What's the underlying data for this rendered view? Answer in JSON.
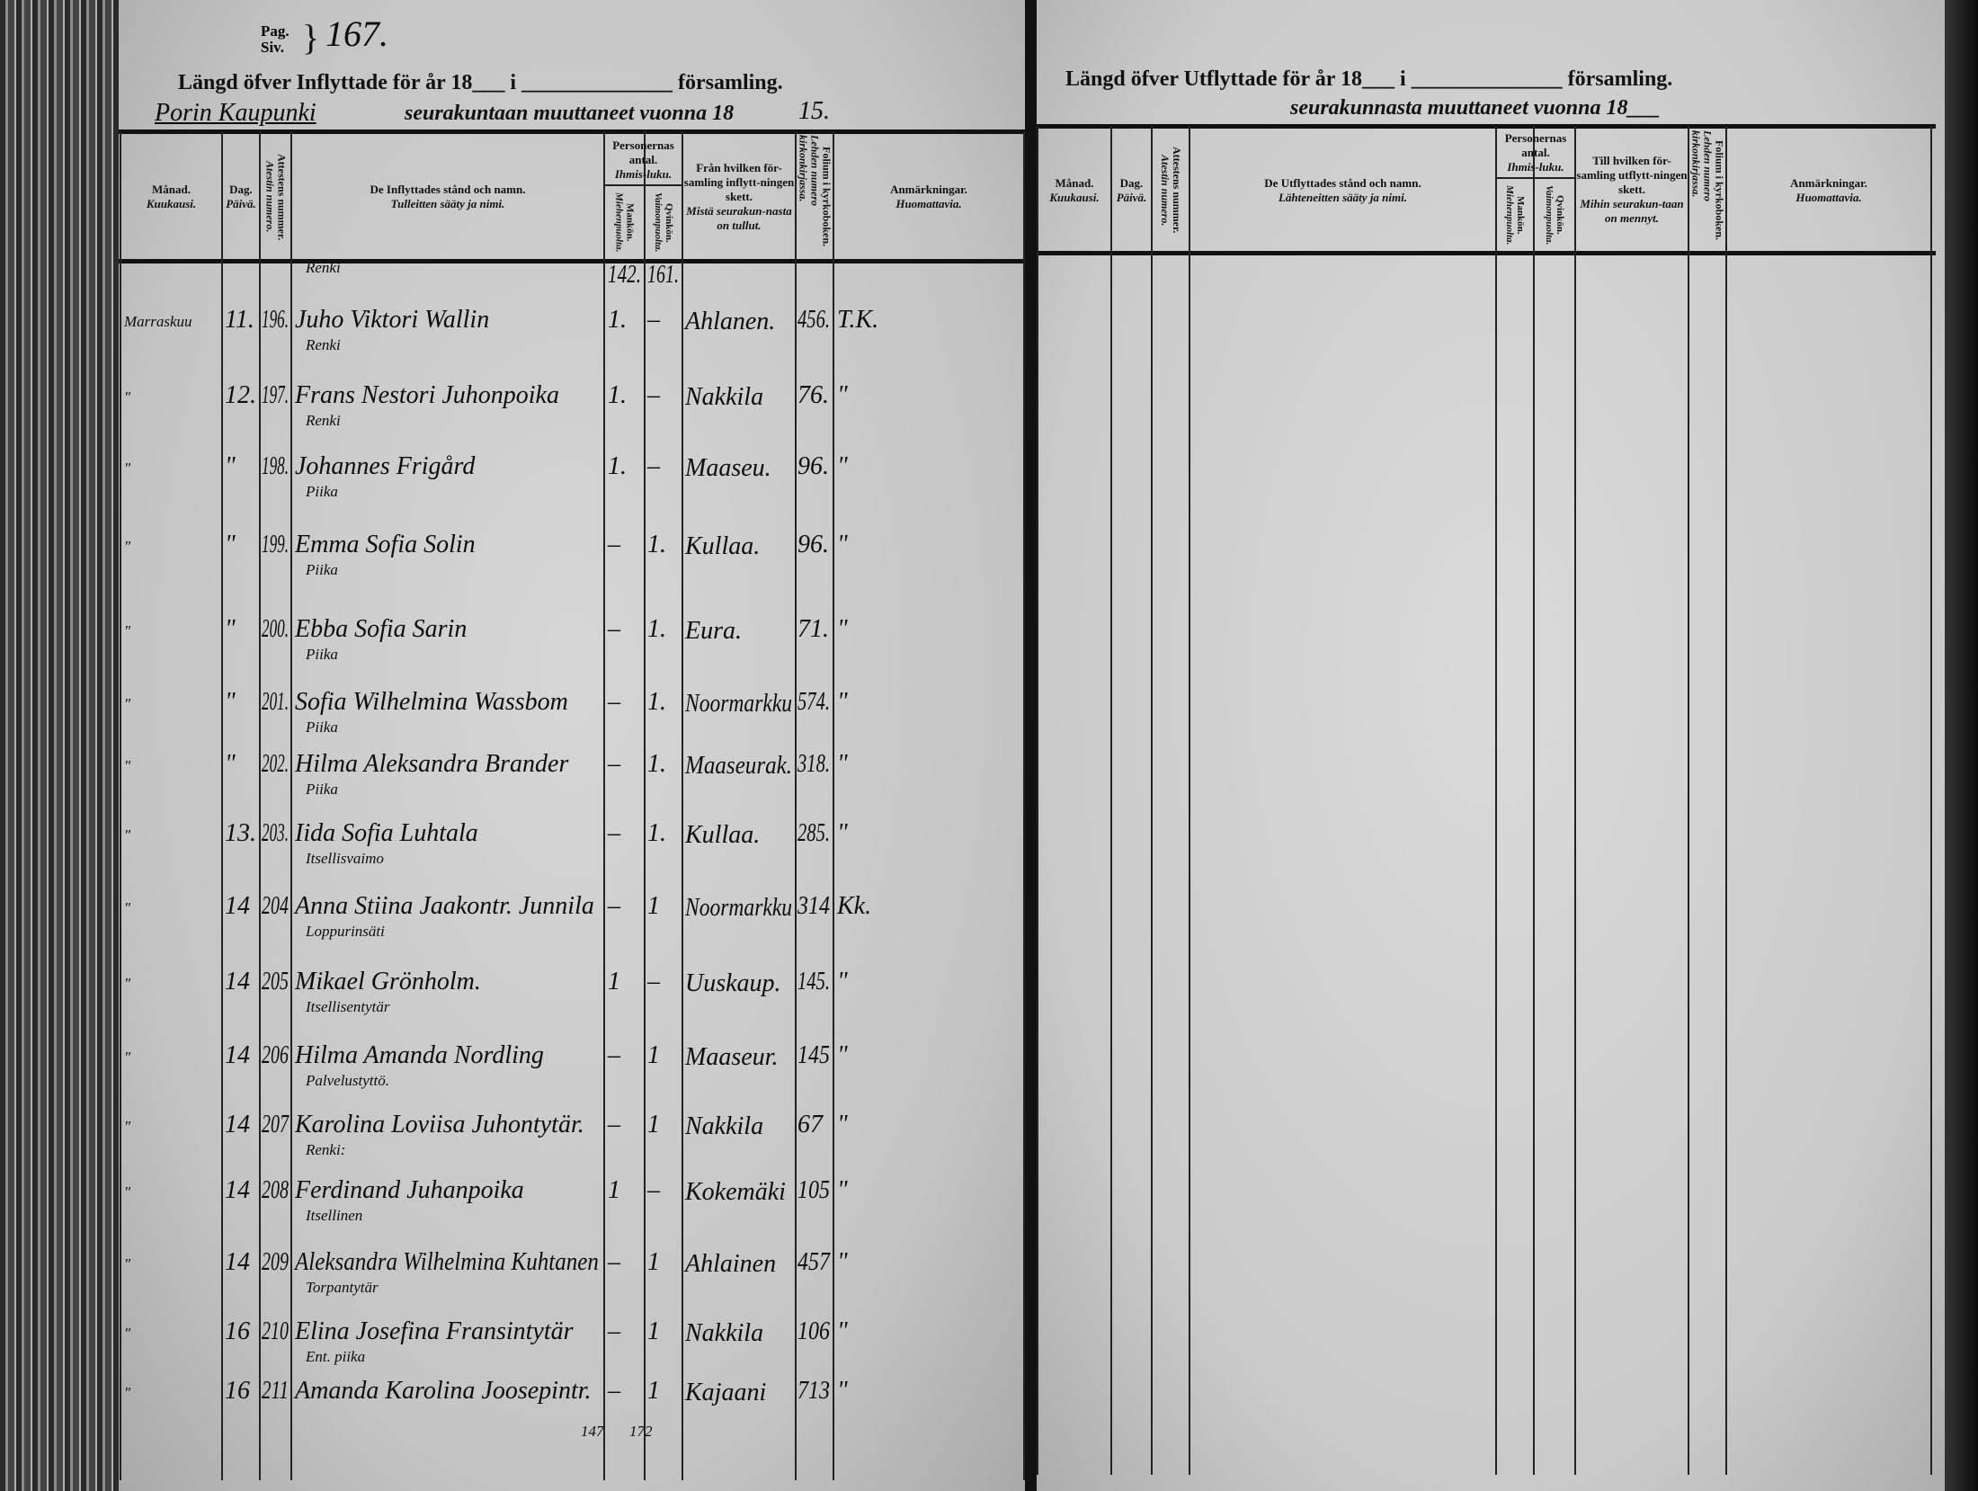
{
  "left_page": {
    "page_label": [
      "Pag.",
      "Siv."
    ],
    "page_number": "167.",
    "title": "Längd öfver Inflyttade för år 18___ i ______________ församling.",
    "subtitle_handwritten": "Porin Kaupunki",
    "subtitle": "seurakuntaan muuttaneet vuonna 18",
    "subtitle_year": "15.",
    "headers": {
      "month": [
        "Månad.",
        "Kuukausi."
      ],
      "day": [
        "Dag.",
        "Päivä."
      ],
      "attest": [
        "Attestens nummer.",
        "Atestin numero."
      ],
      "name": [
        "De Inflyttades stånd och namn.",
        "Tulleitten sääty ja nimi."
      ],
      "persons": [
        "Personernas antal.",
        "Ihmis-luku."
      ],
      "men": [
        "Mankön.",
        "Miehenpuolta."
      ],
      "women": [
        "Qvinkön.",
        "Vaimonpuolta."
      ],
      "from": [
        "Från hvilken för-samling inflytt-ningen skett.",
        "Mistä seurakun-nasta on tullut."
      ],
      "folio": [
        "Folium i kyrkoboken.",
        "Lehden numero kirkonkirjassa."
      ],
      "remarks": [
        "Anmärkningar.",
        "Huomattavia."
      ]
    },
    "rows": [
      {
        "month": "",
        "day": "",
        "number": "",
        "name": "",
        "occupation": "Renki",
        "men": "142.",
        "women": "161.",
        "from": "",
        "folio": "",
        "remark": ""
      },
      {
        "month": "Marraskuu",
        "day": "11.",
        "number": "196.",
        "name": "Juho Viktori Wallin",
        "occupation": "Renki",
        "men": "1.",
        "women": "–",
        "from": "Ahlanen.",
        "folio": "456.",
        "remark": "T.K."
      },
      {
        "month": "\"",
        "day": "12.",
        "number": "197.",
        "name": "Frans Nestori Juhonpoika",
        "occupation": "Renki",
        "men": "1.",
        "women": "–",
        "from": "Nakkila",
        "folio": "76.",
        "remark": "\""
      },
      {
        "month": "\"",
        "day": "\"",
        "number": "198.",
        "name": "Johannes Frigård",
        "occupation": "Piika",
        "men": "1.",
        "women": "–",
        "from": "Maaseu.",
        "folio": "96.",
        "remark": "\""
      },
      {
        "month": "\"",
        "day": "\"",
        "number": "199.",
        "name": "Emma Sofia Solin",
        "occupation": "Piika",
        "men": "–",
        "women": "1.",
        "from": "Kullaa.",
        "folio": "96.",
        "remark": "\""
      },
      {
        "month": "\"",
        "day": "\"",
        "number": "200.",
        "name": "Ebba Sofia Sarin",
        "occupation": "Piika",
        "men": "–",
        "women": "1.",
        "from": "Eura.",
        "folio": "71.",
        "remark": "\""
      },
      {
        "month": "\"",
        "day": "\"",
        "number": "201.",
        "name": "Sofia Wilhelmina Wassbom",
        "occupation": "Piika",
        "men": "–",
        "women": "1.",
        "from": "Noormarkku",
        "folio": "574.",
        "remark": "\""
      },
      {
        "month": "\"",
        "day": "\"",
        "number": "202.",
        "name": "Hilma Aleksandra Brander",
        "occupation": "Piika",
        "men": "–",
        "women": "1.",
        "from": "Maaseurak.",
        "folio": "318.",
        "remark": "\""
      },
      {
        "month": "\"",
        "day": "13.",
        "number": "203.",
        "name": "Iida Sofia Luhtala",
        "occupation": "Itsellisvaimo",
        "men": "–",
        "women": "1.",
        "from": "Kullaa.",
        "folio": "285.",
        "remark": "\""
      },
      {
        "month": "\"",
        "day": "14",
        "number": "204",
        "name": "Anna Stiina Jaakontr. Junnila",
        "occupation": "Loppurinsäti",
        "men": "–",
        "women": "1",
        "from": "Noormarkku",
        "folio": "314",
        "remark": "Kk."
      },
      {
        "month": "\"",
        "day": "14",
        "number": "205",
        "name": "Mikael Grönholm.",
        "occupation": "Itsellisentytär",
        "men": "1",
        "women": "–",
        "from": "Uuskaup.",
        "folio": "145.",
        "remark": "\""
      },
      {
        "month": "\"",
        "day": "14",
        "number": "206",
        "name": "Hilma Amanda Nordling",
        "occupation": "Palvelustyttö.",
        "men": "–",
        "women": "1",
        "from": "Maaseur.",
        "folio": "145",
        "remark": "\""
      },
      {
        "month": "\"",
        "day": "14",
        "number": "207",
        "name": "Karolina Loviisa Juhontytär.",
        "occupation": "Renki:",
        "men": "–",
        "women": "1",
        "from": "Nakkila",
        "folio": "67",
        "remark": "\""
      },
      {
        "month": "\"",
        "day": "14",
        "number": "208",
        "name": "Ferdinand Juhanpoika",
        "occupation": "Itsellinen",
        "men": "1",
        "women": "–",
        "from": "Kokemäki",
        "folio": "105",
        "remark": "\""
      },
      {
        "month": "\"",
        "day": "14",
        "number": "209",
        "name": "Aleksandra Wilhelmina Kuhtanen",
        "occupation": "Torpantytär",
        "men": "–",
        "women": "1",
        "from": "Ahlainen",
        "folio": "457",
        "remark": "\""
      },
      {
        "month": "\"",
        "day": "16",
        "number": "210",
        "name": "Elina Josefina Fransintytär",
        "occupation": "Ent. piika",
        "men": "–",
        "women": "1",
        "from": "Nakkila",
        "folio": "106",
        "remark": "\""
      },
      {
        "month": "\"",
        "day": "16",
        "number": "211",
        "name": "Amanda Karolina Joosepintr.",
        "occupation": "",
        "men": "–",
        "women": "1",
        "from": "Kajaani",
        "folio": "713",
        "remark": "\""
      }
    ],
    "totals": {
      "men": "147",
      "women": "172"
    }
  },
  "right_page": {
    "title": "Längd öfver Utflyttade för år 18___ i ______________ församling.",
    "subtitle": "seurakunnasta muuttaneet vuonna 18___",
    "headers": {
      "month": [
        "Månad.",
        "Kuukausi."
      ],
      "day": [
        "Dag.",
        "Päivä."
      ],
      "attest": [
        "Attestens nummer.",
        "Atestin numero."
      ],
      "name": [
        "De Utflyttades stånd och namn.",
        "Lähteneitten sääty ja nimi."
      ],
      "persons": [
        "Personernas antal.",
        "Ihmis-luku."
      ],
      "men": [
        "Mankön.",
        "Miehenpuolta."
      ],
      "women": [
        "Qvinkön.",
        "Vaimonpuolta."
      ],
      "to": [
        "Till hvilken för-samling utflytt-ningen skett.",
        "Mihin seurakun-taan on mennyt."
      ],
      "folio": [
        "Folium i kyrkoboken.",
        "Lehden numero kirkonkirjassa."
      ],
      "remarks": [
        "Anmärkningar.",
        "Huomattavia."
      ]
    }
  }
}
